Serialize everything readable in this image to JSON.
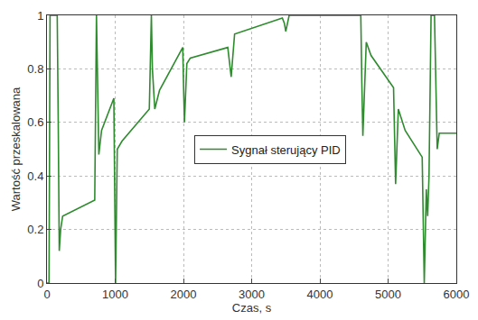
{
  "chart_data": {
    "type": "line",
    "xlabel": "Czas, s",
    "ylabel": "Wartość przeskalowana",
    "x": [
      0,
      30,
      45,
      150,
      165,
      180,
      200,
      230,
      700,
      715,
      725,
      760,
      800,
      980,
      995,
      1005,
      1030,
      1100,
      1500,
      1515,
      1530,
      1545,
      1580,
      1650,
      1990,
      2005,
      2015,
      2050,
      2100,
      2650,
      2680,
      2700,
      2750,
      3450,
      3480,
      3500,
      3550,
      4600,
      4615,
      4630,
      4680,
      4750,
      5080,
      5095,
      5110,
      5150,
      5250,
      5500,
      5515,
      5530,
      5560,
      5580,
      5600,
      5615,
      5630,
      5680,
      5700,
      5720,
      5750,
      6000
    ],
    "series": [
      {
        "name": "Sygnał sterujący PID",
        "color": "#2e8b2e",
        "values": [
          0,
          0,
          1,
          1,
          0.6,
          0.12,
          0.2,
          0.25,
          0.31,
          0.7,
          1,
          0.48,
          0.57,
          0.69,
          0.2,
          0,
          0.5,
          0.53,
          0.65,
          0.85,
          1,
          0.8,
          0.65,
          0.72,
          0.88,
          0.7,
          0.6,
          0.82,
          0.84,
          0.88,
          0.8,
          0.77,
          0.93,
          0.99,
          0.97,
          0.94,
          1,
          1,
          0.75,
          0.55,
          0.9,
          0.85,
          0.73,
          0.5,
          0.37,
          0.65,
          0.57,
          0.47,
          0.2,
          0,
          0.35,
          0.25,
          0.4,
          0.8,
          1,
          1,
          0.7,
          0.5,
          0.56,
          0.56
        ]
      }
    ],
    "xlim": [
      0,
      6000
    ],
    "xticks": [
      0,
      1000,
      2000,
      3000,
      4000,
      5000,
      6000
    ],
    "ylim": [
      0,
      1
    ],
    "yticks": [
      0,
      0.2,
      0.4,
      0.6,
      0.8,
      1
    ],
    "grid": true,
    "legend": "center"
  }
}
